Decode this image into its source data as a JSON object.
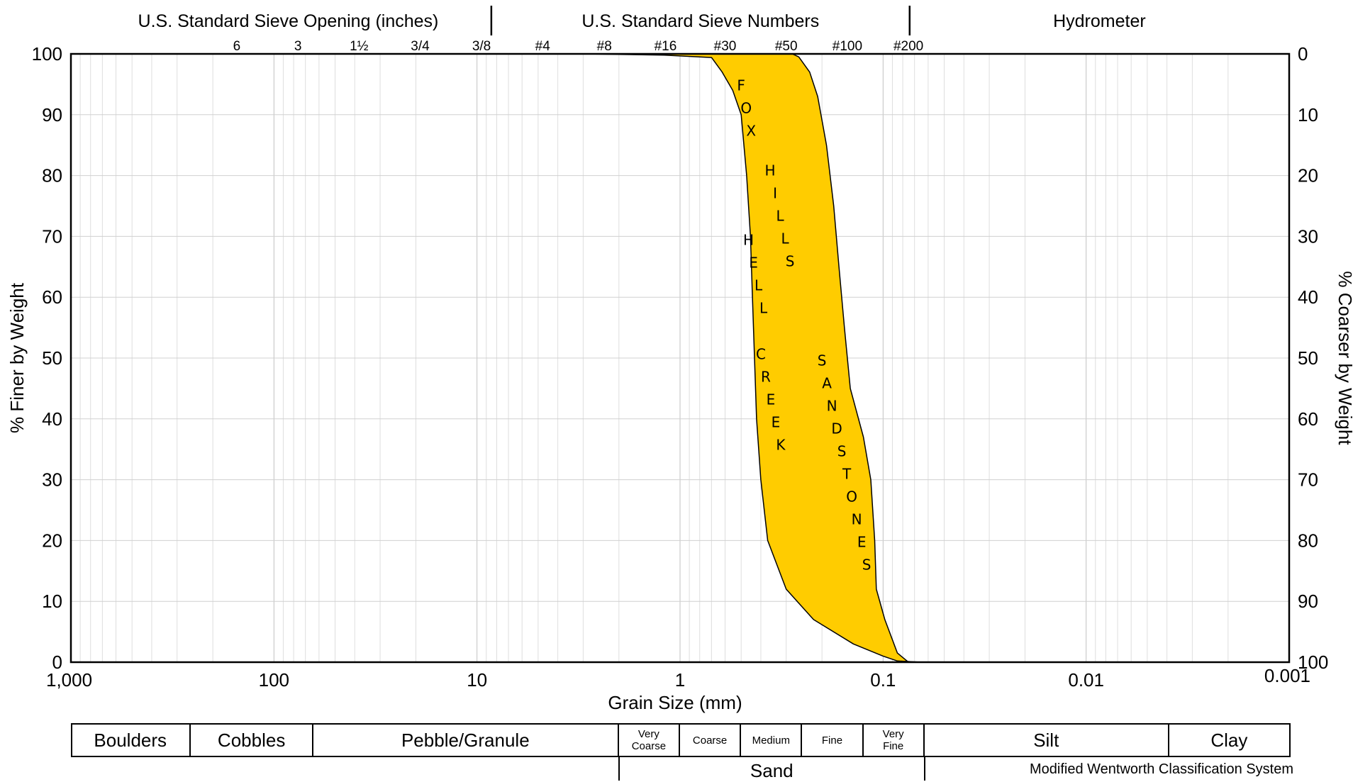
{
  "chart_data": {
    "type": "area",
    "xlabel": "Grain Size (mm)",
    "ylabel_left": "% Finer by Weight",
    "ylabel_right": "% Coarser by Weight",
    "x_scale": "log",
    "x_reversed": true,
    "xlim": [
      1000,
      0.001
    ],
    "ylim": [
      0,
      100
    ],
    "grid": true,
    "x_ticks": [
      {
        "v": 1000,
        "label": "1,000"
      },
      {
        "v": 100,
        "label": "100"
      },
      {
        "v": 10,
        "label": "10"
      },
      {
        "v": 1,
        "label": "1"
      },
      {
        "v": 0.1,
        "label": "0.1"
      },
      {
        "v": 0.01,
        "label": "0.01"
      },
      {
        "v": 0.001,
        "label": "0.001"
      }
    ],
    "y_ticks_left": [
      "0",
      "10",
      "20",
      "30",
      "40",
      "50",
      "60",
      "70",
      "80",
      "90",
      "100"
    ],
    "y_ticks_right": [
      "100",
      "90",
      "80",
      "70",
      "60",
      "50",
      "40",
      "30",
      "20",
      "10",
      "0"
    ],
    "top_sections": [
      {
        "label": "U.S. Standard Sieve Opening (inches)"
      },
      {
        "label": "U.S. Standard Sieve Numbers"
      },
      {
        "label": "Hydrometer"
      }
    ],
    "top_divider_sizes_mm": [
      8.5,
      0.074
    ],
    "sieve_ticks": [
      {
        "label": "6",
        "v": 152.4
      },
      {
        "label": "3",
        "v": 76.2
      },
      {
        "label": "1½",
        "v": 38.1
      },
      {
        "label": "3/4",
        "v": 19.05
      },
      {
        "label": "3/8",
        "v": 9.5
      },
      {
        "label": "#4",
        "v": 4.75
      },
      {
        "label": "#8",
        "v": 2.36
      },
      {
        "label": "#16",
        "v": 1.18
      },
      {
        "label": "#30",
        "v": 0.6
      },
      {
        "label": "#50",
        "v": 0.3
      },
      {
        "label": "#100",
        "v": 0.15
      },
      {
        "label": "#200",
        "v": 0.075
      }
    ],
    "band": {
      "fill": "#FFCC00",
      "coarse_edge": [
        [
          3.0,
          100
        ],
        [
          1.2,
          99.8
        ],
        [
          0.7,
          99.4
        ],
        [
          0.62,
          97
        ],
        [
          0.55,
          94
        ],
        [
          0.5,
          90
        ],
        [
          0.47,
          80
        ],
        [
          0.45,
          70
        ],
        [
          0.44,
          60
        ],
        [
          0.43,
          50
        ],
        [
          0.42,
          40
        ],
        [
          0.4,
          30
        ],
        [
          0.37,
          20
        ],
        [
          0.3,
          12
        ],
        [
          0.22,
          7
        ],
        [
          0.14,
          3
        ],
        [
          0.1,
          1
        ],
        [
          0.085,
          0.2
        ],
        [
          0.065,
          0
        ]
      ],
      "fine_edge": [
        [
          0.28,
          100
        ],
        [
          0.26,
          99.5
        ],
        [
          0.23,
          97
        ],
        [
          0.21,
          93
        ],
        [
          0.19,
          85
        ],
        [
          0.175,
          75
        ],
        [
          0.165,
          65
        ],
        [
          0.155,
          55
        ],
        [
          0.145,
          45
        ],
        [
          0.125,
          37
        ],
        [
          0.115,
          30
        ],
        [
          0.11,
          20
        ],
        [
          0.108,
          12
        ],
        [
          0.098,
          7
        ],
        [
          0.085,
          1.5
        ],
        [
          0.075,
          0
        ]
      ]
    },
    "annotations": [
      {
        "text": "FOX",
        "x": 0.5,
        "y": 94
      },
      {
        "text": "HILLS",
        "x": 0.36,
        "y": 80
      },
      {
        "text": "HELL",
        "x": 0.46,
        "y": 68.6
      },
      {
        "text": "CREEK",
        "x": 0.4,
        "y": 49.8
      },
      {
        "text": "SANDSTONES",
        "x": 0.2,
        "y": 48.8
      }
    ]
  },
  "classification": {
    "cells": [
      {
        "label": "Boulders",
        "from": 1000,
        "to": 256
      },
      {
        "label": "Cobbles",
        "from": 256,
        "to": 64
      },
      {
        "label": "Pebble/Granule",
        "from": 64,
        "to": 2
      },
      {
        "label": "Very\nCoarse",
        "from": 2,
        "to": 1,
        "small": true
      },
      {
        "label": "Coarse",
        "from": 1,
        "to": 0.5,
        "small": true
      },
      {
        "label": "Medium",
        "from": 0.5,
        "to": 0.25,
        "small": true
      },
      {
        "label": "Fine",
        "from": 0.25,
        "to": 0.125,
        "small": true
      },
      {
        "label": "Very\nFine",
        "from": 0.125,
        "to": 0.0625,
        "small": true
      },
      {
        "label": "Silt",
        "from": 0.0625,
        "to": 0.0039
      },
      {
        "label": "Clay",
        "from": 0.0039,
        "to": 0.001
      }
    ],
    "sand_label": "Sand",
    "system_label": "Modified Wentworth Classification System"
  }
}
